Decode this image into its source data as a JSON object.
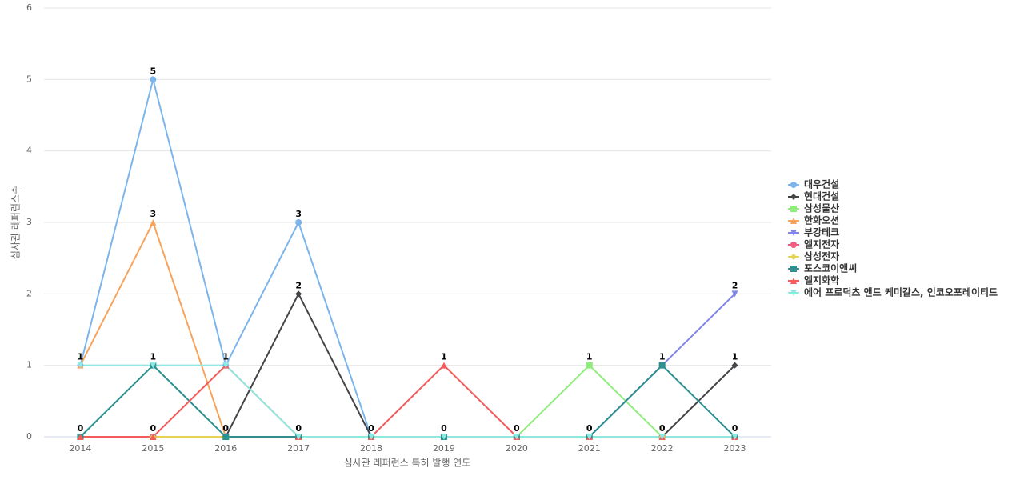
{
  "chart_data": {
    "type": "line",
    "x_label": "심사관 레퍼런스 특허 발행 연도",
    "y_label": "심사관 레퍼런스수",
    "categories": [
      "2014",
      "2015",
      "2016",
      "2017",
      "2018",
      "2019",
      "2020",
      "2021",
      "2022",
      "2023"
    ],
    "ylim": [
      0,
      6
    ],
    "yticks": [
      0,
      1,
      2,
      3,
      4,
      5,
      6
    ],
    "grid": true,
    "legend": "right",
    "series": [
      {
        "name": "대우건설",
        "color": "#7cb5ec",
        "marker": "circle",
        "values": [
          1,
          5,
          1,
          3,
          0,
          0,
          0,
          0,
          0,
          0
        ]
      },
      {
        "name": "현대건설",
        "color": "#434348",
        "marker": "diamond",
        "values": [
          0,
          0,
          0,
          2,
          0,
          0,
          0,
          0,
          0,
          1
        ]
      },
      {
        "name": "삼성물산",
        "color": "#90ed7d",
        "marker": "square",
        "values": [
          0,
          0,
          0,
          0,
          0,
          0,
          0,
          1,
          0,
          0
        ]
      },
      {
        "name": "한화오션",
        "color": "#f7a35c",
        "marker": "triangle",
        "values": [
          1,
          3,
          0,
          0,
          0,
          0,
          0,
          0,
          0,
          0
        ]
      },
      {
        "name": "부강테크",
        "color": "#8085e9",
        "marker": "triangle-down",
        "values": [
          0,
          0,
          0,
          0,
          0,
          0,
          0,
          0,
          1,
          2
        ]
      },
      {
        "name": "엘지전자",
        "color": "#f15c80",
        "marker": "circle",
        "values": [
          0,
          0,
          0,
          0,
          0,
          0,
          0,
          0,
          0,
          0
        ]
      },
      {
        "name": "삼성전자",
        "color": "#e4d354",
        "marker": "diamond",
        "values": [
          0,
          0,
          0,
          0,
          0,
          0,
          0,
          0,
          0,
          0
        ]
      },
      {
        "name": "포스코이앤씨",
        "color": "#2b908f",
        "marker": "square",
        "values": [
          0,
          1,
          0,
          0,
          0,
          0,
          0,
          0,
          1,
          0
        ]
      },
      {
        "name": "엘지화학",
        "color": "#f45b5b",
        "marker": "triangle",
        "values": [
          0,
          0,
          1,
          0,
          0,
          1,
          0,
          0,
          0,
          0
        ]
      },
      {
        "name": "에어 프로덕츠 앤드 케미칼스, 인코오포레이티드",
        "color": "#91e8e1",
        "marker": "triangle-down",
        "values": [
          1,
          1,
          1,
          0,
          0,
          0,
          0,
          0,
          0,
          0
        ]
      }
    ]
  }
}
